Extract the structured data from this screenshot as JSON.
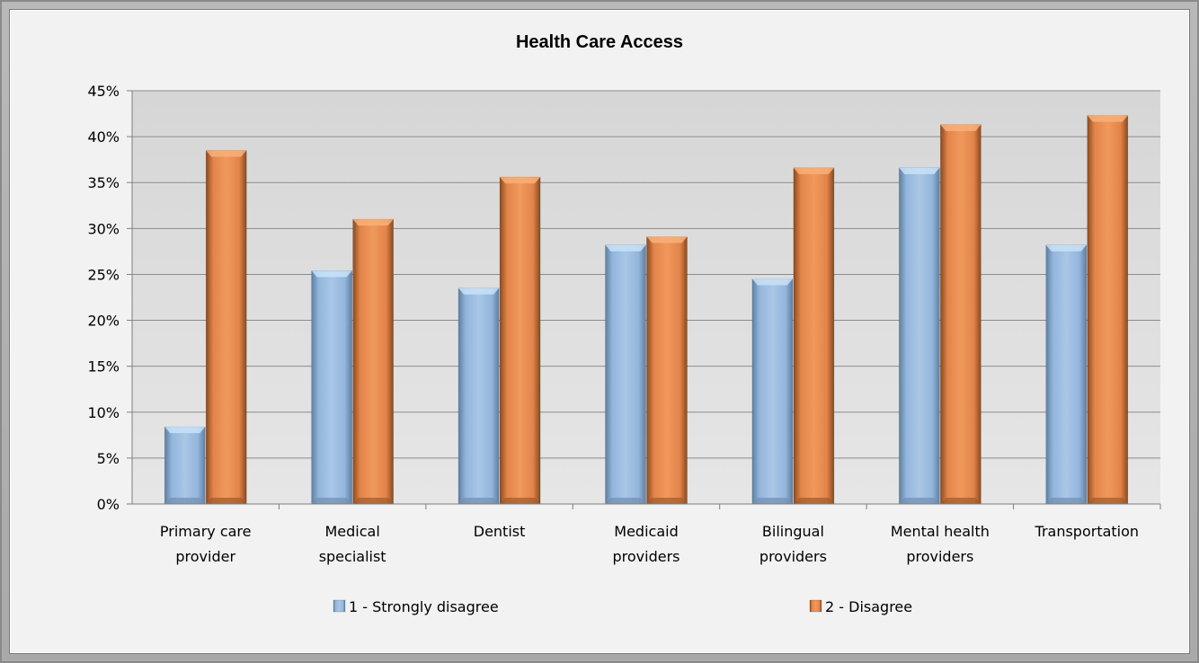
{
  "chart_data": {
    "type": "bar",
    "title": "Health Care Access",
    "xlabel": "",
    "ylabel": "",
    "ylim": [
      0,
      0.45
    ],
    "y_tick_step": 0.05,
    "y_tick_labels": [
      "0%",
      "5%",
      "10%",
      "15%",
      "20%",
      "25%",
      "30%",
      "35%",
      "40%",
      "45%"
    ],
    "grid": true,
    "legend_position": "bottom",
    "categories": [
      [
        "Primary care",
        "provider"
      ],
      [
        "Medical",
        "specialist"
      ],
      [
        "Dentist"
      ],
      [
        "Medicaid",
        "providers"
      ],
      [
        "Bilingual",
        "providers"
      ],
      [
        "Mental health",
        "providers"
      ],
      [
        "Transportation"
      ]
    ],
    "series": [
      {
        "name": "1 - Strongly disagree",
        "color": "#8fb4dc",
        "values": [
          0.084,
          0.254,
          0.235,
          0.282,
          0.245,
          0.366,
          0.282
        ]
      },
      {
        "name": "2 - Disagree",
        "color": "#e98a4a",
        "values": [
          0.385,
          0.31,
          0.356,
          0.291,
          0.366,
          0.413,
          0.423
        ]
      }
    ]
  }
}
